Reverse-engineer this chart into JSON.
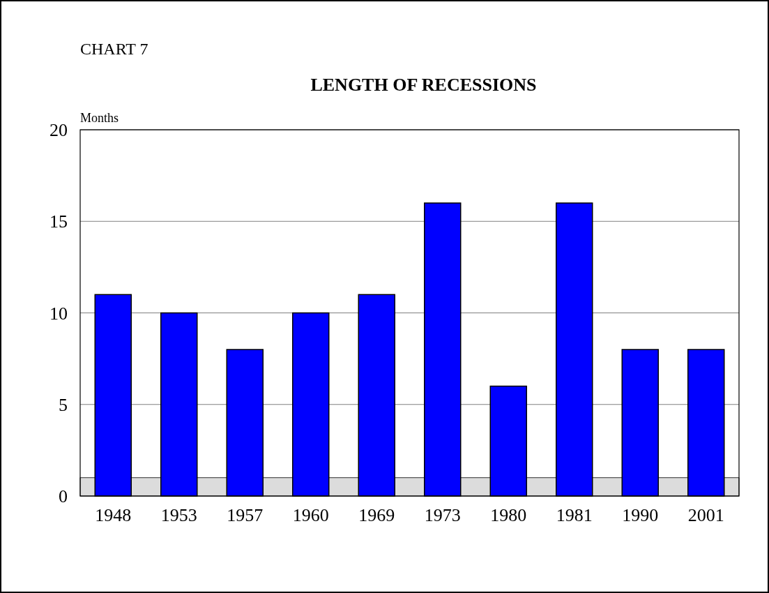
{
  "chart_data": {
    "type": "bar",
    "title": "LENGTH OF RECESSIONS",
    "ylabel": "Months",
    "annotations": [
      "CHART 7"
    ],
    "categories": [
      "1948",
      "1953",
      "1957",
      "1960",
      "1969",
      "1973",
      "1980",
      "1981",
      "1990",
      "2001"
    ],
    "values": [
      11,
      10,
      8,
      10,
      11,
      16,
      6,
      16,
      8,
      8
    ],
    "color": "#0000ff",
    "ylim": [
      0,
      20
    ],
    "yticks": [
      0,
      5,
      10,
      15,
      20
    ],
    "grid": "y",
    "bands": [
      {
        "axis": "y",
        "from": 0,
        "to": 1,
        "color": "#dcdcdc"
      }
    ]
  }
}
